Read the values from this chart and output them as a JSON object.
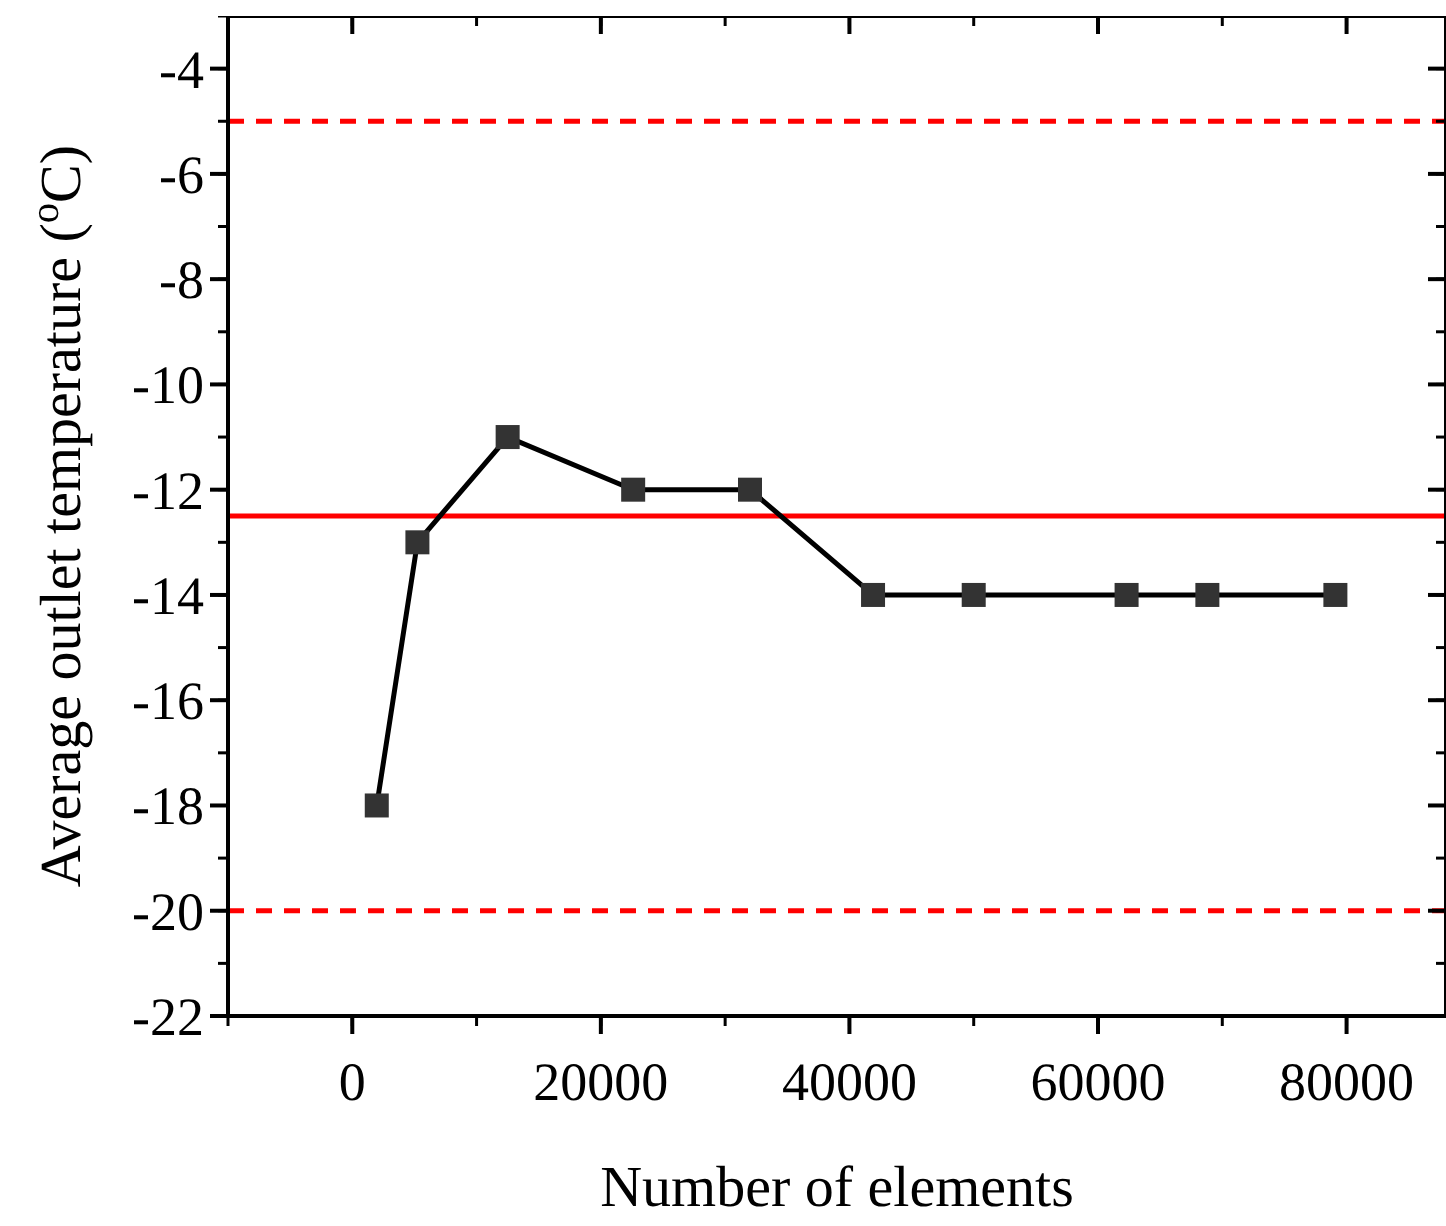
{
  "chart_data": {
    "type": "line",
    "xlabel": "Number of elements",
    "ylabel": "Average outlet temperature ($^{o}$C)",
    "x": [
      1970,
      5240,
      12500,
      22600,
      32000,
      41900,
      50000,
      62300,
      68800,
      79100
    ],
    "series": [
      {
        "color": "#333333",
        "values": [
          -18,
          -13,
          -11,
          -12,
          -12,
          -14,
          -14,
          -14,
          -14,
          -14
        ]
      }
    ],
    "marker": "square",
    "line_style": "solid",
    "xlim": [
      -10000,
      88000
    ],
    "xticks": [
      0,
      20000,
      40000,
      60000,
      80000
    ],
    "ylim": [
      -22,
      -3
    ],
    "yticks": [
      -22,
      -20,
      -18,
      -16,
      -14,
      -12,
      -10,
      -8,
      -6,
      -4
    ],
    "ref_lines": [
      {
        "axis": "y",
        "value": -5,
        "color": "#ff0000",
        "line_style": "dashed"
      },
      {
        "axis": "y",
        "value": -12.5,
        "color": "#ff0000",
        "line_style": "solid"
      },
      {
        "axis": "y",
        "value": -20,
        "color": "#ff0000",
        "line_style": "dashed"
      }
    ]
  }
}
